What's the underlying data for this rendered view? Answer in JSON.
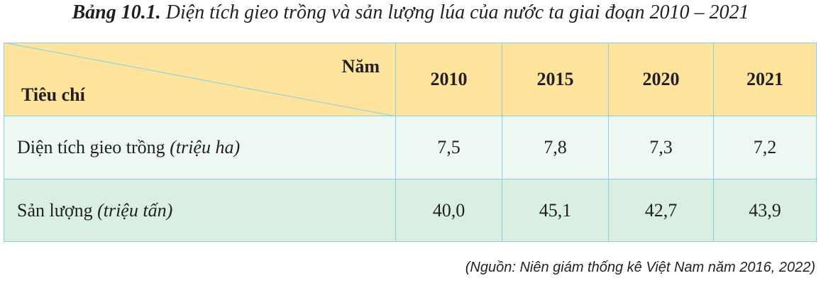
{
  "title": {
    "label": "Bảng 10.1.",
    "text": "Diện tích gieo trồng và sản lượng lúa của nước ta giai đoạn 2010 – 2021"
  },
  "table": {
    "corner": {
      "top": "Năm",
      "bottom": "Tiêu chí"
    },
    "columns": [
      "2010",
      "2015",
      "2020",
      "2021"
    ],
    "rows": [
      {
        "label": "Diện tích gieo trồng",
        "unit": "(triệu ha)",
        "values": [
          "7,5",
          "7,8",
          "7,3",
          "7,2"
        ]
      },
      {
        "label": "Sản lượng",
        "unit": "(triệu tấn)",
        "values": [
          "40,0",
          "45,1",
          "42,7",
          "43,9"
        ]
      }
    ]
  },
  "source": "(Nguồn: Niên giám thống kê Việt Nam năm 2016, 2022)"
}
